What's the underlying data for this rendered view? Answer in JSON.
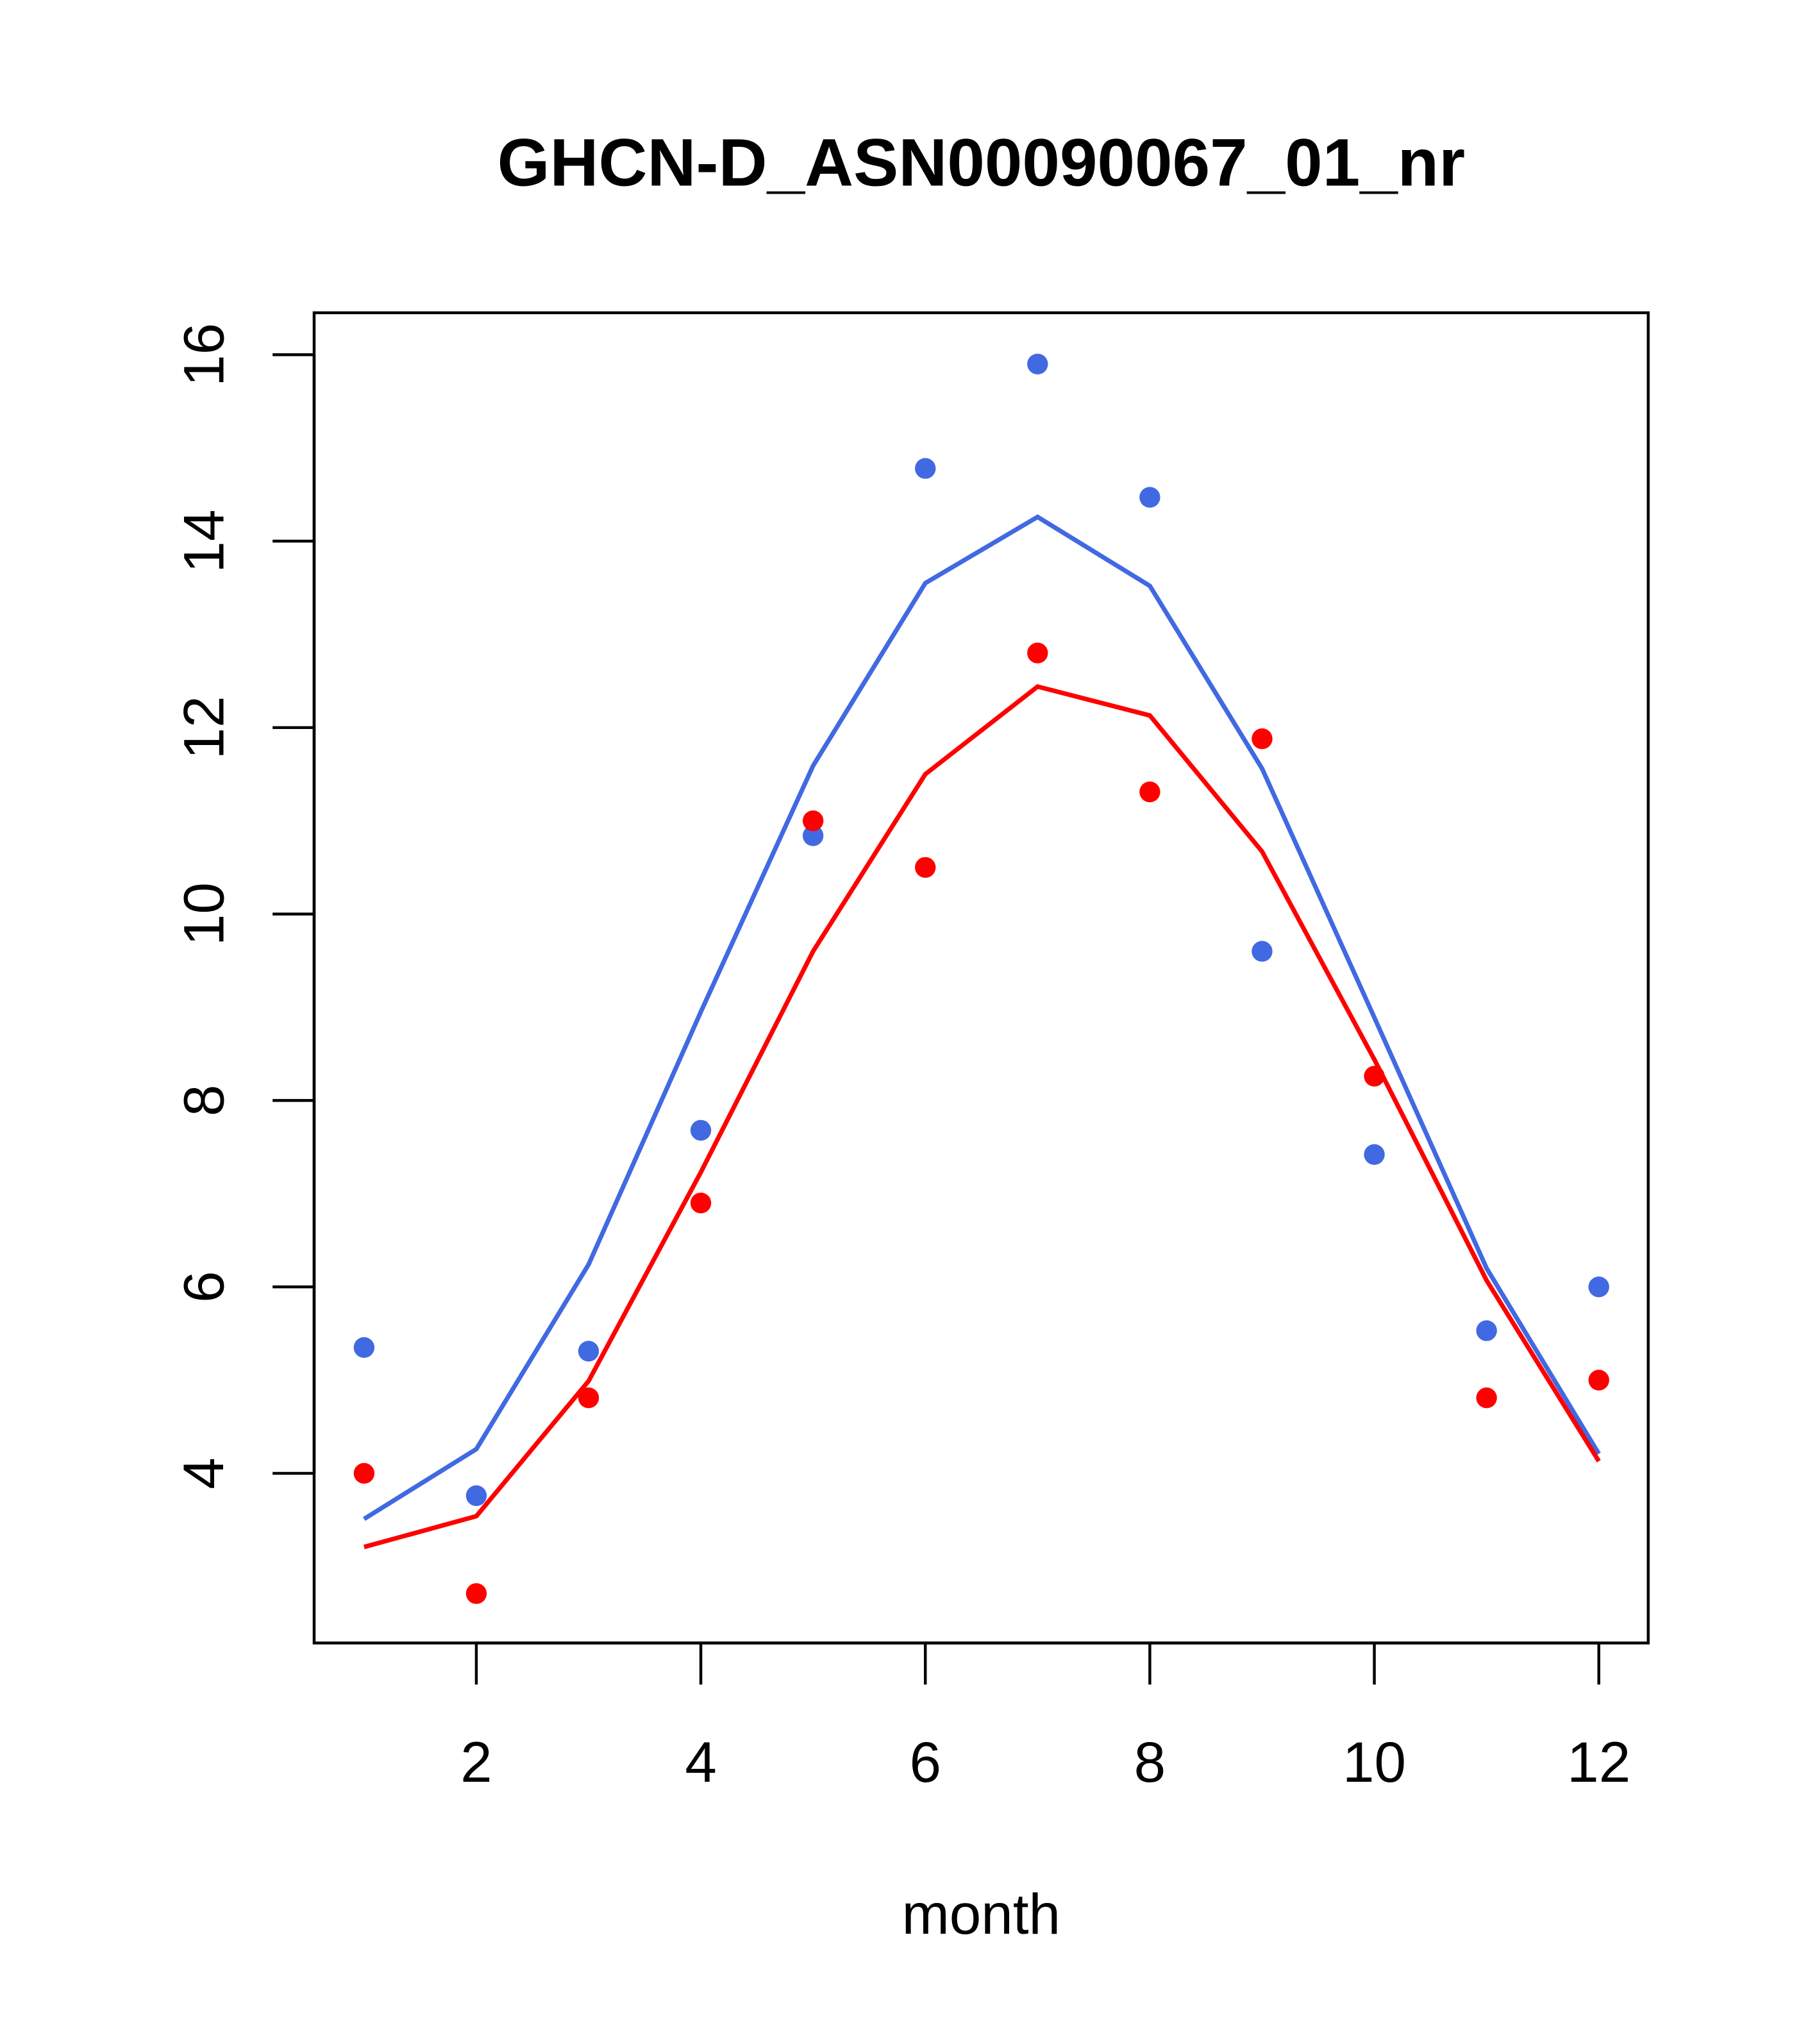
{
  "chart_data": {
    "type": "scatter",
    "title": "GHCN-D_ASN00090067_01_nr",
    "xlabel": "month",
    "ylabel": "",
    "xlim": [
      0.555,
      12.44
    ],
    "ylim": [
      2.18,
      16.45
    ],
    "xticks": [
      2,
      4,
      6,
      8,
      10,
      12
    ],
    "yticks": [
      4,
      6,
      8,
      10,
      12,
      14,
      16
    ],
    "grid": false,
    "x": [
      1,
      2,
      3,
      4,
      5,
      6,
      7,
      8,
      9,
      10,
      11,
      12
    ],
    "series": [
      {
        "name": "blue points",
        "kind": "points",
        "color": "#4169E1",
        "values": [
          5.35,
          3.76,
          5.31,
          7.68,
          10.84,
          14.78,
          15.9,
          14.47,
          9.6,
          7.42,
          5.53,
          6.0
        ]
      },
      {
        "name": "red points",
        "kind": "points",
        "color": "#FF0000",
        "values": [
          4.0,
          2.71,
          4.81,
          6.9,
          11.0,
          10.5,
          12.8,
          11.31,
          11.88,
          8.26,
          4.81,
          5.0
        ]
      },
      {
        "name": "blue line",
        "kind": "line",
        "color": "#4169E1",
        "values": [
          3.51,
          4.26,
          6.24,
          8.95,
          11.59,
          13.55,
          14.26,
          13.52,
          11.56,
          8.89,
          6.2,
          4.21
        ]
      },
      {
        "name": "red line",
        "kind": "line",
        "color": "#FF0000",
        "values": [
          3.21,
          3.54,
          4.99,
          7.23,
          9.6,
          11.5,
          12.44,
          12.13,
          10.67,
          8.44,
          6.07,
          4.13
        ]
      }
    ]
  }
}
